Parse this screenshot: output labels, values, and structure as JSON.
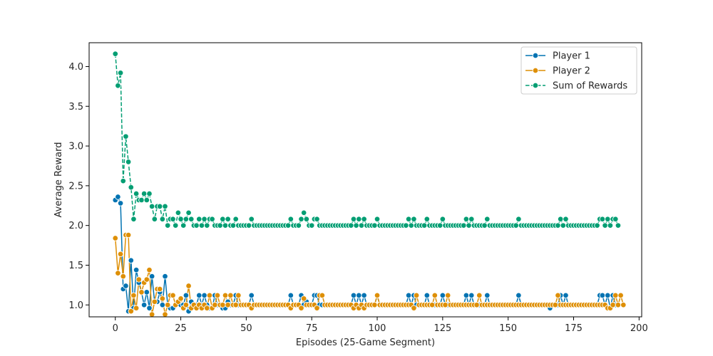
{
  "chart_data": {
    "type": "line",
    "title": "",
    "xlabel": "Episodes (25-Game Segment)",
    "ylabel": "Average Reward",
    "xlim": [
      -10,
      201
    ],
    "ylim": [
      0.85,
      4.3
    ],
    "xticks": [
      0,
      25,
      50,
      75,
      100,
      125,
      150,
      175,
      200
    ],
    "yticks": [
      1.0,
      1.5,
      2.0,
      2.5,
      3.0,
      3.5,
      4.0
    ],
    "grid": false,
    "legend_position": "top-right",
    "x_start": 0,
    "series": [
      {
        "name": "Player 1",
        "color": "#0173b2",
        "dashed": false,
        "values": [
          2.32,
          2.36,
          2.28,
          1.2,
          1.24,
          0.92,
          1.56,
          0.96,
          1.44,
          1.28,
          1.16,
          1.0,
          1.16,
          0.96,
          1.36,
          1.04,
          1.04,
          1.16,
          1.0,
          1.36,
          1.0,
          0.96,
          0.96,
          1.0,
          1.04,
          1.0,
          1.0,
          1.12,
          0.92,
          1.04,
          1.0,
          1.0,
          1.12,
          1.0,
          1.12,
          1.0,
          0.96,
          0.96,
          1.12,
          1.0,
          1.0,
          0.96,
          0.96,
          1.04,
          1.0,
          1.0,
          1.12,
          1.0,
          1.0,
          1.0,
          1.0,
          1.0,
          1.12,
          1.0,
          1.0,
          1.0,
          1.0,
          1.0,
          1.0,
          1.0,
          1.0,
          1.0,
          1.0,
          1.0,
          1.0,
          1.0,
          1.0,
          1.12,
          1.0,
          1.0,
          1.0,
          1.12,
          1.0,
          1.04,
          1.0,
          1.0,
          1.12,
          1.12,
          1.0,
          1.0,
          1.0,
          1.0,
          1.0,
          1.0,
          1.0,
          1.0,
          1.0,
          1.0,
          1.0,
          1.0,
          1.0,
          1.12,
          1.0,
          1.12,
          1.0,
          1.12,
          1.0,
          1.0,
          1.0,
          1.0,
          1.12,
          1.0,
          1.0,
          1.0,
          1.0,
          1.0,
          1.0,
          1.0,
          1.0,
          1.0,
          1.0,
          1.0,
          1.12,
          1.0,
          1.12,
          1.0,
          1.0,
          1.0,
          1.0,
          1.12,
          1.0,
          1.0,
          1.0,
          1.0,
          1.0,
          1.12,
          1.0,
          1.0,
          1.0,
          1.0,
          1.0,
          1.0,
          1.0,
          1.0,
          1.12,
          1.0,
          1.12,
          1.0,
          1.0,
          1.0,
          1.0,
          1.0,
          1.12,
          1.0,
          1.0,
          1.0,
          1.0,
          1.0,
          1.0,
          1.0,
          1.0,
          1.0,
          1.0,
          1.0,
          1.12,
          1.0,
          1.0,
          1.0,
          1.0,
          1.0,
          1.0,
          1.0,
          1.0,
          1.0,
          1.0,
          1.0,
          0.96,
          1.0,
          1.0,
          1.0,
          1.12,
          1.0,
          1.12,
          1.0,
          1.0,
          1.0,
          1.0,
          1.0,
          1.0,
          1.0,
          1.0,
          1.0,
          1.0,
          1.0,
          1.0,
          1.12,
          1.12,
          1.0,
          1.12,
          0.96,
          1.12,
          1.0
        ]
      },
      {
        "name": "Player 2",
        "color": "#de8f05",
        "dashed": false,
        "values": [
          1.84,
          1.4,
          1.64,
          1.36,
          1.88,
          1.88,
          0.92,
          1.12,
          0.96,
          1.32,
          1.16,
          1.28,
          1.32,
          1.44,
          0.88,
          1.04,
          1.2,
          1.2,
          1.08,
          0.88,
          1.0,
          1.12,
          1.12,
          1.0,
          1.04,
          1.08,
          0.96,
          1.0,
          1.24,
          0.96,
          1.0,
          0.96,
          1.0,
          0.96,
          1.0,
          0.96,
          1.12,
          0.96,
          1.0,
          1.12,
          1.0,
          1.0,
          1.12,
          1.0,
          1.12,
          1.0,
          1.0,
          1.12,
          1.0,
          1.0,
          1.0,
          1.0,
          0.96,
          1.0,
          1.0,
          1.0,
          1.0,
          1.0,
          1.0,
          1.0,
          1.0,
          1.0,
          1.0,
          1.0,
          1.0,
          1.0,
          1.0,
          0.96,
          1.0,
          1.0,
          1.0,
          0.96,
          1.08,
          1.0,
          1.0,
          1.0,
          1.0,
          0.96,
          1.12,
          1.12,
          1.0,
          1.0,
          1.0,
          1.0,
          1.0,
          1.0,
          1.0,
          1.0,
          1.0,
          1.0,
          1.0,
          0.96,
          1.0,
          0.96,
          1.0,
          0.96,
          1.0,
          1.0,
          1.0,
          1.0,
          1.12,
          1.0,
          1.0,
          1.0,
          1.0,
          1.0,
          1.0,
          1.0,
          1.0,
          1.0,
          1.0,
          1.0,
          1.0,
          1.0,
          0.96,
          1.12,
          1.0,
          1.0,
          1.0,
          1.0,
          1.0,
          1.0,
          1.12,
          1.0,
          1.0,
          1.0,
          1.0,
          1.12,
          1.0,
          1.0,
          1.0,
          1.0,
          1.0,
          1.0,
          1.0,
          1.0,
          1.0,
          1.0,
          1.0,
          1.12,
          1.0,
          1.0,
          1.0,
          1.0,
          1.0,
          1.0,
          1.0,
          1.0,
          1.0,
          1.0,
          1.0,
          1.0,
          1.0,
          1.0,
          1.0,
          1.0,
          1.0,
          1.0,
          1.0,
          1.0,
          1.0,
          1.0,
          1.0,
          1.0,
          1.0,
          1.0,
          1.0,
          1.0,
          1.0,
          1.12,
          1.0,
          1.0,
          1.0,
          1.0,
          1.0,
          1.0,
          1.0,
          1.0,
          1.0,
          1.0,
          1.0,
          1.0,
          1.0,
          1.0,
          1.0,
          1.0,
          1.0,
          1.0,
          0.96,
          0.96,
          1.0,
          1.12,
          1.0,
          1.12,
          1.0
        ]
      },
      {
        "name": "Sum of Rewards",
        "color": "#029e73",
        "dashed": true,
        "values": [
          4.16,
          3.76,
          3.92,
          2.56,
          3.12,
          2.8,
          2.48,
          2.08,
          2.4,
          2.32,
          2.32,
          2.4,
          2.32,
          2.4,
          2.24,
          2.08,
          2.24,
          2.24,
          2.08,
          2.24,
          2.0,
          2.08,
          2.08,
          2.0,
          2.16,
          2.08,
          2.0,
          2.08,
          2.16,
          2.08,
          2.0,
          2.0,
          2.08,
          2.0,
          2.08,
          2.0,
          2.08,
          2.08,
          2.0,
          2.0,
          2.0,
          2.08,
          2.0,
          2.08,
          2.0,
          2.0,
          2.08,
          2.0,
          2.0,
          2.0,
          2.0,
          2.0,
          2.08,
          2.0,
          2.0,
          2.0,
          2.0,
          2.0,
          2.0,
          2.0,
          2.0,
          2.0,
          2.0,
          2.0,
          2.0,
          2.0,
          2.0,
          2.08,
          2.0,
          2.0,
          2.0,
          2.08,
          2.16,
          2.08,
          2.0,
          2.0,
          2.08,
          2.08,
          2.0,
          2.0,
          2.0,
          2.0,
          2.0,
          2.0,
          2.0,
          2.0,
          2.0,
          2.0,
          2.0,
          2.0,
          2.0,
          2.08,
          2.0,
          2.08,
          2.0,
          2.08,
          2.0,
          2.0,
          2.0,
          2.0,
          2.08,
          2.0,
          2.0,
          2.0,
          2.0,
          2.0,
          2.0,
          2.0,
          2.0,
          2.0,
          2.0,
          2.0,
          2.08,
          2.0,
          2.08,
          2.0,
          2.0,
          2.0,
          2.0,
          2.08,
          2.0,
          2.0,
          2.0,
          2.0,
          2.0,
          2.08,
          2.0,
          2.0,
          2.0,
          2.0,
          2.0,
          2.0,
          2.0,
          2.0,
          2.08,
          2.0,
          2.08,
          2.0,
          2.0,
          2.0,
          2.0,
          2.0,
          2.08,
          2.0,
          2.0,
          2.0,
          2.0,
          2.0,
          2.0,
          2.0,
          2.0,
          2.0,
          2.0,
          2.0,
          2.08,
          2.0,
          2.0,
          2.0,
          2.0,
          2.0,
          2.0,
          2.0,
          2.0,
          2.0,
          2.0,
          2.0,
          2.0,
          2.0,
          2.0,
          2.0,
          2.08,
          2.0,
          2.08,
          2.0,
          2.0,
          2.0,
          2.0,
          2.0,
          2.0,
          2.0,
          2.0,
          2.0,
          2.0,
          2.0,
          2.0,
          2.08,
          2.08,
          2.0,
          2.08,
          2.0,
          2.08,
          2.08,
          2.0
        ]
      }
    ]
  }
}
